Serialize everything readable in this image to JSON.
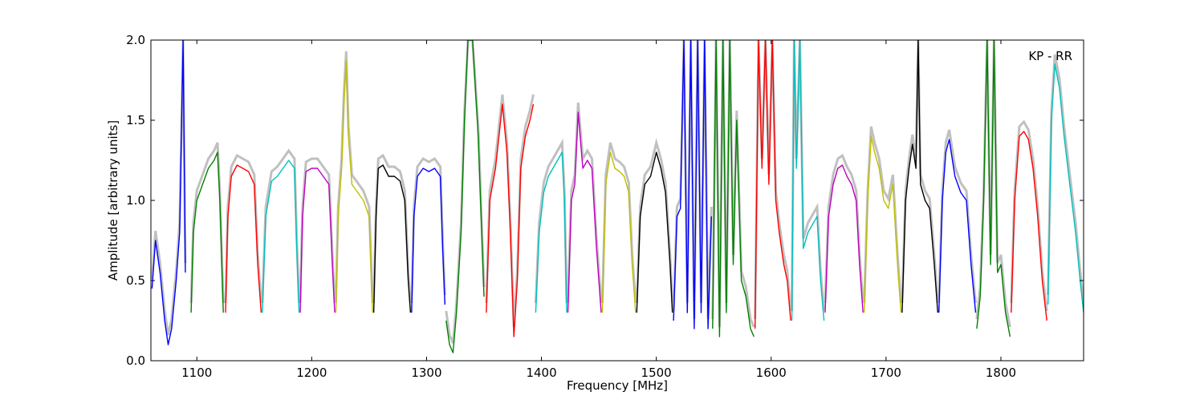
{
  "chart_data": {
    "type": "line",
    "title": "",
    "annotation": "KP - RR",
    "xlabel": "Frequency [MHz]",
    "ylabel": "Amplitude [arbitrary units]",
    "xlim": [
      1060,
      1872
    ],
    "ylim": [
      0,
      2.0
    ],
    "xticks": [
      1100,
      1200,
      1300,
      1400,
      1500,
      1600,
      1700,
      1800
    ],
    "yticks": [
      0.0,
      0.5,
      1.0,
      1.5,
      2.0
    ],
    "xtick_labels": [
      "1100",
      "1200",
      "1300",
      "1400",
      "1500",
      "1600",
      "1700",
      "1800"
    ],
    "ytick_labels": [
      "0.0",
      "0.5",
      "1.0",
      "1.5",
      "2.0"
    ],
    "grid": false,
    "legend": "none",
    "background_color": "#c0c0c0",
    "series": [
      {
        "color": "#0000ff",
        "x": [
          1061,
          1064,
          1068,
          1072,
          1075,
          1078,
          1082,
          1085,
          1088,
          1090
        ],
        "y": [
          0.45,
          0.75,
          0.55,
          0.25,
          0.1,
          0.2,
          0.5,
          0.8,
          2.0,
          0.55
        ]
      },
      {
        "color": "#008000",
        "x": [
          1095,
          1097,
          1100,
          1105,
          1110,
          1115,
          1118,
          1120,
          1123
        ],
        "y": [
          0.3,
          0.8,
          1.0,
          1.1,
          1.2,
          1.25,
          1.3,
          1.0,
          0.3
        ]
      },
      {
        "color": "#ff0000",
        "x": [
          1125,
          1127,
          1130,
          1135,
          1140,
          1145,
          1150,
          1153,
          1156
        ],
        "y": [
          0.3,
          0.9,
          1.15,
          1.22,
          1.2,
          1.18,
          1.1,
          0.6,
          0.3
        ]
      },
      {
        "color": "#00bfbf",
        "x": [
          1157,
          1160,
          1165,
          1170,
          1175,
          1180,
          1185,
          1187,
          1189
        ],
        "y": [
          0.3,
          0.9,
          1.12,
          1.15,
          1.2,
          1.25,
          1.2,
          0.7,
          0.3
        ]
      },
      {
        "color": "#bf00bf",
        "x": [
          1190,
          1192,
          1195,
          1200,
          1205,
          1210,
          1215,
          1218,
          1220
        ],
        "y": [
          0.3,
          0.9,
          1.18,
          1.2,
          1.2,
          1.15,
          1.1,
          0.6,
          0.3
        ]
      },
      {
        "color": "#bfbf00",
        "x": [
          1221,
          1223,
          1226,
          1228,
          1230,
          1232,
          1235,
          1240,
          1245,
          1250,
          1253
        ],
        "y": [
          0.3,
          0.9,
          1.2,
          1.6,
          1.87,
          1.4,
          1.1,
          1.05,
          1.0,
          0.9,
          0.3
        ]
      },
      {
        "color": "#000000",
        "x": [
          1254,
          1256,
          1258,
          1262,
          1267,
          1272,
          1277,
          1281,
          1284,
          1286
        ],
        "y": [
          0.3,
          0.9,
          1.2,
          1.22,
          1.15,
          1.15,
          1.12,
          1.0,
          0.5,
          0.3
        ]
      },
      {
        "color": "#0000ff",
        "x": [
          1287,
          1289,
          1292,
          1297,
          1302,
          1307,
          1312,
          1314,
          1316
        ],
        "y": [
          0.3,
          0.9,
          1.15,
          1.2,
          1.18,
          1.2,
          1.15,
          0.7,
          0.35
        ]
      },
      {
        "color": "#008000",
        "x": [
          1317,
          1320,
          1323,
          1326,
          1330,
          1333,
          1336,
          1340,
          1345,
          1350
        ],
        "y": [
          0.25,
          0.1,
          0.05,
          0.3,
          0.8,
          1.5,
          2.0,
          2.0,
          1.4,
          0.4
        ]
      },
      {
        "color": "#ff0000",
        "x": [
          1352,
          1355,
          1360,
          1366,
          1370,
          1373,
          1376,
          1379,
          1382,
          1386,
          1390,
          1393
        ],
        "y": [
          0.3,
          1.0,
          1.2,
          1.6,
          1.3,
          0.8,
          0.15,
          0.5,
          1.2,
          1.4,
          1.5,
          1.6
        ]
      },
      {
        "color": "#00bfbf",
        "x": [
          1395,
          1398,
          1402,
          1406,
          1410,
          1414,
          1418,
          1420,
          1422
        ],
        "y": [
          0.3,
          0.8,
          1.05,
          1.15,
          1.2,
          1.25,
          1.3,
          1.0,
          0.3
        ]
      },
      {
        "color": "#bf00bf",
        "x": [
          1423,
          1426,
          1429,
          1432,
          1436,
          1440,
          1444,
          1448,
          1452
        ],
        "y": [
          0.3,
          1.0,
          1.1,
          1.55,
          1.2,
          1.25,
          1.2,
          0.7,
          0.3
        ]
      },
      {
        "color": "#bfbf00",
        "x": [
          1453,
          1456,
          1460,
          1464,
          1468,
          1472,
          1476,
          1479,
          1482
        ],
        "y": [
          0.3,
          1.1,
          1.3,
          1.2,
          1.18,
          1.15,
          1.05,
          0.6,
          0.3
        ]
      },
      {
        "color": "#000000",
        "x": [
          1483,
          1486,
          1490,
          1495,
          1500,
          1504,
          1508,
          1512,
          1514
        ],
        "y": [
          0.3,
          0.9,
          1.1,
          1.15,
          1.3,
          1.2,
          1.05,
          0.6,
          0.3
        ]
      },
      {
        "color": "#0000ff",
        "x": [
          1515,
          1518,
          1521,
          1524,
          1527,
          1530,
          1533,
          1536,
          1539,
          1542,
          1545,
          1548
        ],
        "y": [
          0.25,
          0.9,
          0.95,
          2.0,
          0.3,
          2.0,
          0.2,
          2.0,
          0.3,
          2.0,
          0.2,
          0.9
        ]
      },
      {
        "color": "#008000",
        "x": [
          1549,
          1552,
          1555,
          1558,
          1561,
          1564,
          1567,
          1570,
          1574,
          1578,
          1582,
          1585
        ],
        "y": [
          0.2,
          2.0,
          0.15,
          2.0,
          0.3,
          2.0,
          0.6,
          1.5,
          0.5,
          0.4,
          0.2,
          0.15
        ]
      },
      {
        "color": "#ff0000",
        "x": [
          1586,
          1589,
          1592,
          1595,
          1598,
          1601,
          1604,
          1607,
          1611,
          1614,
          1617
        ],
        "y": [
          0.2,
          2.0,
          1.2,
          2.0,
          1.1,
          2.0,
          1.0,
          0.8,
          0.6,
          0.5,
          0.25
        ]
      },
      {
        "color": "#00bfbf",
        "x": [
          1618,
          1620,
          1622,
          1625,
          1628,
          1632,
          1636,
          1640,
          1643,
          1646
        ],
        "y": [
          0.25,
          2.0,
          1.2,
          2.0,
          0.7,
          0.8,
          0.85,
          0.9,
          0.5,
          0.25
        ]
      },
      {
        "color": "#bf00bf",
        "x": [
          1647,
          1650,
          1654,
          1658,
          1662,
          1666,
          1670,
          1674,
          1677,
          1680
        ],
        "y": [
          0.3,
          0.9,
          1.1,
          1.2,
          1.22,
          1.15,
          1.1,
          1.0,
          0.6,
          0.3
        ]
      },
      {
        "color": "#bfbf00",
        "x": [
          1681,
          1684,
          1687,
          1690,
          1694,
          1698,
          1702,
          1706,
          1710,
          1713
        ],
        "y": [
          0.3,
          1.0,
          1.4,
          1.3,
          1.2,
          1.0,
          0.95,
          1.1,
          0.6,
          0.3
        ]
      },
      {
        "color": "#000000",
        "x": [
          1714,
          1717,
          1720,
          1723,
          1726,
          1728,
          1730,
          1734,
          1738,
          1742,
          1745
        ],
        "y": [
          0.3,
          1.0,
          1.2,
          1.35,
          1.2,
          2.0,
          1.1,
          1.0,
          0.95,
          0.6,
          0.3
        ]
      },
      {
        "color": "#0000ff",
        "x": [
          1746,
          1749,
          1752,
          1755,
          1760,
          1765,
          1770,
          1774,
          1778
        ],
        "y": [
          0.3,
          1.0,
          1.3,
          1.38,
          1.15,
          1.05,
          1.0,
          0.6,
          0.3
        ]
      },
      {
        "color": "#008000",
        "x": [
          1779,
          1782,
          1785,
          1788,
          1791,
          1794,
          1797,
          1800,
          1804,
          1808
        ],
        "y": [
          0.2,
          0.4,
          1.0,
          2.0,
          0.6,
          2.0,
          0.55,
          0.6,
          0.3,
          0.15
        ]
      },
      {
        "color": "#ff0000",
        "x": [
          1809,
          1812,
          1816,
          1820,
          1824,
          1828,
          1832,
          1836,
          1840
        ],
        "y": [
          0.3,
          1.0,
          1.4,
          1.43,
          1.38,
          1.2,
          0.9,
          0.5,
          0.25
        ]
      },
      {
        "color": "#00bfbf",
        "x": [
          1841,
          1844,
          1847,
          1851,
          1855,
          1860,
          1865,
          1869,
          1872
        ],
        "y": [
          0.35,
          1.5,
          1.85,
          1.7,
          1.4,
          1.1,
          0.8,
          0.5,
          0.3
        ]
      }
    ]
  }
}
